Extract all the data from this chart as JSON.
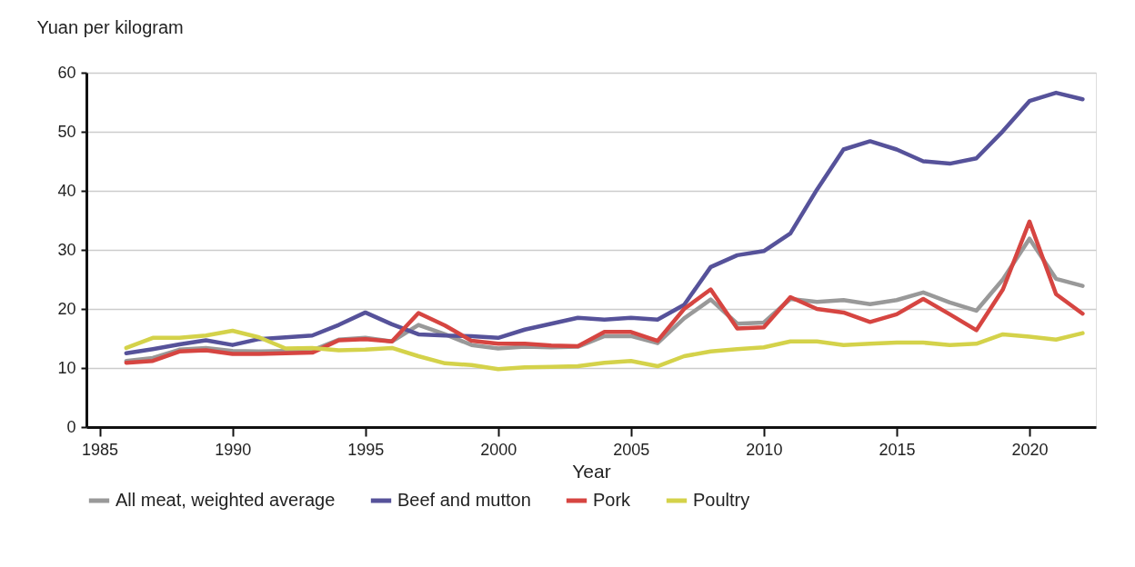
{
  "chart_data": {
    "type": "line",
    "xlabel": "Year",
    "ylabel": "Yuan per kilogram",
    "x": [
      1986,
      1987,
      1988,
      1989,
      1990,
      1991,
      1992,
      1993,
      1994,
      1995,
      1996,
      1997,
      1998,
      1999,
      2000,
      2001,
      2002,
      2003,
      2004,
      2005,
      2006,
      2007,
      2008,
      2009,
      2010,
      2011,
      2012,
      2013,
      2014,
      2015,
      2016,
      2017,
      2018,
      2019,
      2020,
      2021,
      2022
    ],
    "series": [
      {
        "name": "All meat, weighted average",
        "color": "#999999",
        "values": [
          11.2,
          11.7,
          13.1,
          13.4,
          12.9,
          12.8,
          12.9,
          13.0,
          14.8,
          15.1,
          14.5,
          17.3,
          15.7,
          13.9,
          13.3,
          13.6,
          13.5,
          13.6,
          15.4,
          15.4,
          14.2,
          18.4,
          21.6,
          17.5,
          17.7,
          21.7,
          21.2,
          21.5,
          20.8,
          21.5,
          22.8,
          21.1,
          19.7,
          25.0,
          31.9,
          25.1,
          23.9
        ]
      },
      {
        "name": "Beef and mutton",
        "color": "#56529a",
        "values": [
          12.5,
          13.2,
          14.0,
          14.7,
          13.9,
          14.9,
          15.2,
          15.5,
          17.3,
          19.4,
          17.4,
          15.7,
          15.5,
          15.4,
          15.1,
          16.5,
          17.5,
          18.5,
          18.2,
          18.5,
          18.2,
          20.7,
          27.1,
          29.1,
          29.8,
          32.8,
          40.2,
          47.0,
          48.4,
          47.0,
          45.0,
          44.6,
          45.5,
          50.1,
          55.2,
          56.6,
          55.5
        ]
      },
      {
        "name": "Pork",
        "color": "#d64541",
        "values": [
          10.9,
          11.2,
          12.8,
          13.0,
          12.4,
          12.4,
          12.5,
          12.6,
          14.7,
          14.9,
          14.5,
          19.3,
          17.2,
          14.6,
          14.1,
          14.1,
          13.8,
          13.7,
          16.1,
          16.1,
          14.6,
          20.0,
          23.3,
          16.7,
          16.9,
          22.0,
          20.0,
          19.4,
          17.8,
          19.1,
          21.7,
          19.1,
          16.4,
          23.3,
          34.8,
          22.5,
          19.2
        ]
      },
      {
        "name": "Poultry",
        "color": "#d4d24a",
        "values": [
          13.4,
          15.1,
          15.1,
          15.5,
          16.3,
          15.2,
          13.3,
          13.4,
          13.0,
          13.1,
          13.4,
          12.0,
          10.8,
          10.5,
          9.8,
          10.1,
          10.2,
          10.3,
          10.9,
          11.2,
          10.3,
          12.0,
          12.8,
          13.2,
          13.5,
          14.5,
          14.5,
          13.9,
          14.1,
          14.3,
          14.3,
          13.9,
          14.1,
          15.7,
          15.3,
          14.8,
          15.9
        ]
      }
    ],
    "xlim": [
      1984.5,
      2022.5
    ],
    "xticks": [
      1985,
      1990,
      1995,
      2000,
      2005,
      2010,
      2015,
      2020
    ],
    "ylim": [
      0,
      60
    ],
    "yticks": [
      0,
      10,
      20,
      30,
      40,
      50,
      60
    ],
    "grid": "y",
    "legend": "bottom",
    "line_style": "solid"
  }
}
